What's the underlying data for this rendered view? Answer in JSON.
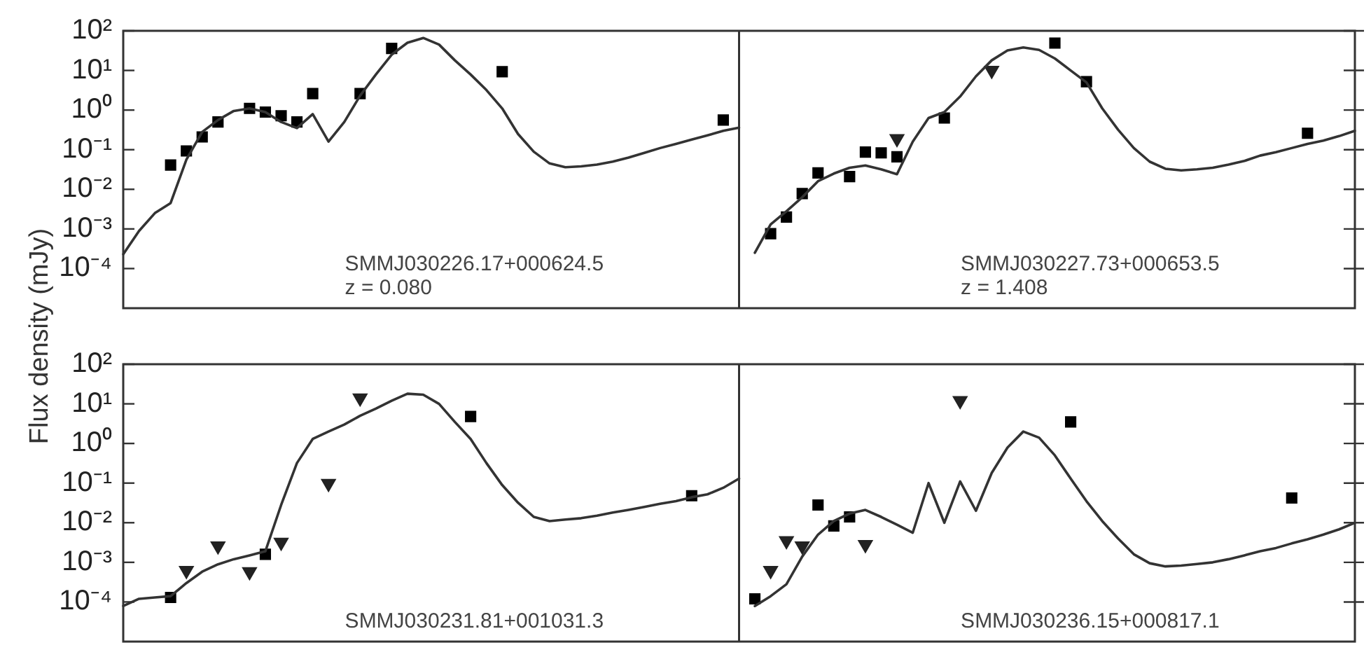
{
  "chart_data": [
    {
      "type": "line",
      "ylabel": "Flux density (mJy)",
      "log": true,
      "legend": false,
      "tick_labels": "y",
      "ylim": [
        1e-05,
        100
      ],
      "yticks": [
        {
          "value": 0.0001,
          "label": "10⁻⁴"
        },
        {
          "value": 0.001,
          "label": "10⁻³"
        },
        {
          "value": 0.01,
          "label": "10⁻²"
        },
        {
          "value": 0.1,
          "label": "10⁻¹"
        },
        {
          "value": 1,
          "label": "10⁰"
        },
        {
          "value": 10,
          "label": "10¹"
        },
        {
          "value": 100,
          "label": "10²"
        }
      ],
      "annotations": [
        "SMMJ030226.17+000624.5",
        "z = 0.080",
        "SMMJ030227.73+000653.5",
        "z = 1.408"
      ],
      "categories": [
        null,
        null,
        null,
        null,
        null,
        null,
        null,
        null,
        null,
        null,
        null,
        null,
        null,
        null,
        null,
        null,
        null,
        null,
        null,
        null,
        null,
        null,
        null,
        null,
        null,
        null,
        null,
        null,
        null,
        null,
        null,
        null,
        null,
        null,
        null,
        null,
        null,
        null,
        null,
        null,
        null,
        null,
        null,
        null,
        null,
        null,
        null,
        null,
        null,
        null,
        null,
        null,
        null,
        null,
        null,
        null,
        null,
        null,
        null,
        null,
        null,
        null,
        null,
        null,
        null,
        null,
        null,
        null,
        null,
        null,
        null,
        null,
        null,
        null,
        null,
        null,
        null,
        null,
        null
      ],
      "series": [
        {
          "type": "line",
          "marker": "none",
          "color": "#333333",
          "values": [
            0.00023,
            0.00089,
            0.0025,
            0.0045,
            0.056,
            0.28,
            0.56,
            0.95,
            1.1,
            0.89,
            0.5,
            0.35,
            0.79,
            0.16,
            0.5,
            2.3,
            7.9,
            25,
            50,
            66,
            45,
            18,
            7.9,
            3.2,
            1.1,
            0.25,
            0.089,
            0.045,
            0.036,
            0.038,
            0.042,
            0.05,
            0.063,
            0.083,
            0.11,
            0.14,
            0.18,
            0.23,
            0.3,
            0.36,
            null,
            null,
            null,
            null,
            null,
            null,
            null,
            null,
            null,
            null,
            null,
            null,
            null,
            null,
            null,
            null,
            null,
            null,
            null,
            null,
            null,
            null,
            null,
            null,
            null,
            null,
            null,
            null,
            null,
            null,
            null,
            null,
            null,
            null,
            null,
            null,
            null,
            null,
            null
          ]
        },
        {
          "type": "scatter",
          "marker": "square",
          "color": "#000000",
          "values": [
            null,
            null,
            null,
            0.041,
            0.093,
            0.21,
            0.5,
            null,
            1.1,
            0.89,
            0.72,
            0.5,
            2.6,
            null,
            null,
            2.6,
            null,
            36,
            null,
            null,
            null,
            null,
            null,
            null,
            9.3,
            null,
            null,
            null,
            null,
            null,
            null,
            null,
            null,
            null,
            null,
            null,
            null,
            null,
            0.56,
            null,
            null,
            null,
            null,
            null,
            null,
            null,
            null,
            null,
            null,
            null,
            null,
            null,
            null,
            null,
            null,
            null,
            null,
            null,
            null,
            null,
            null,
            null,
            null,
            null,
            null,
            null,
            null,
            null,
            null,
            null,
            null,
            null,
            null,
            null,
            null,
            null,
            null,
            null,
            null
          ]
        },
        {
          "type": "line",
          "marker": "none",
          "color": "#333333",
          "values": [
            null,
            null,
            null,
            null,
            null,
            null,
            null,
            null,
            null,
            null,
            null,
            null,
            null,
            null,
            null,
            null,
            null,
            null,
            null,
            null,
            null,
            null,
            null,
            null,
            null,
            null,
            null,
            null,
            null,
            null,
            null,
            null,
            null,
            null,
            null,
            null,
            null,
            null,
            null,
            null,
            0.00025,
            0.0013,
            0.0028,
            0.0063,
            0.016,
            0.025,
            0.035,
            0.04,
            0.032,
            0.024,
            0.16,
            0.63,
            0.89,
            2.2,
            7.1,
            18,
            32,
            38,
            33,
            20,
            10,
            5,
            1.1,
            0.32,
            0.11,
            0.05,
            0.033,
            0.03,
            0.032,
            0.035,
            0.042,
            0.052,
            0.071,
            0.087,
            0.11,
            0.14,
            0.17,
            0.22,
            0.3
          ]
        },
        {
          "type": "scatter",
          "marker": "square",
          "color": "#000000",
          "values": [
            null,
            null,
            null,
            null,
            null,
            null,
            null,
            null,
            null,
            null,
            null,
            null,
            null,
            null,
            null,
            null,
            null,
            null,
            null,
            null,
            null,
            null,
            null,
            null,
            null,
            null,
            null,
            null,
            null,
            null,
            null,
            null,
            null,
            null,
            null,
            null,
            null,
            null,
            null,
            null,
            null,
            0.00076,
            0.002,
            0.0078,
            0.026,
            null,
            0.021,
            0.087,
            0.083,
            0.066,
            null,
            null,
            0.63,
            null,
            null,
            null,
            null,
            null,
            null,
            49,
            null,
            5.2,
            null,
            null,
            null,
            null,
            null,
            null,
            null,
            null,
            null,
            null,
            null,
            null,
            null,
            0.26,
            null,
            null,
            null
          ]
        },
        {
          "type": "scatter",
          "marker": "triangle",
          "color": "#222222",
          "values": [
            null,
            null,
            null,
            null,
            null,
            null,
            null,
            null,
            null,
            null,
            null,
            null,
            null,
            null,
            null,
            null,
            null,
            null,
            null,
            null,
            null,
            null,
            null,
            null,
            null,
            null,
            null,
            null,
            null,
            null,
            null,
            null,
            null,
            null,
            null,
            null,
            null,
            null,
            null,
            null,
            null,
            null,
            null,
            null,
            null,
            null,
            null,
            null,
            null,
            0.19,
            null,
            null,
            null,
            null,
            null,
            10,
            null,
            null,
            null,
            null,
            null,
            null,
            null,
            null,
            null,
            null,
            null,
            null,
            null,
            null,
            null,
            null,
            null,
            null,
            null,
            null,
            null,
            null,
            null
          ]
        }
      ]
    },
    {
      "type": "line",
      "log": true,
      "legend": false,
      "tick_labels": "y",
      "ylim": [
        1e-05,
        100
      ],
      "yticks": [
        {
          "value": 0.0001,
          "label": "10⁻⁴"
        },
        {
          "value": 0.001,
          "label": "10⁻³"
        },
        {
          "value": 0.01,
          "label": "10⁻²"
        },
        {
          "value": 0.1,
          "label": "10⁻¹"
        },
        {
          "value": 1,
          "label": "10⁰"
        },
        {
          "value": 10,
          "label": "10¹"
        },
        {
          "value": 100,
          "label": "10²"
        }
      ],
      "annotations": [
        "SMMJ030231.81+001031.3",
        "SMMJ030236.15+000817.1"
      ],
      "categories": [
        null,
        null,
        null,
        null,
        null,
        null,
        null,
        null,
        null,
        null,
        null,
        null,
        null,
        null,
        null,
        null,
        null,
        null,
        null,
        null,
        null,
        null,
        null,
        null,
        null,
        null,
        null,
        null,
        null,
        null,
        null,
        null,
        null,
        null,
        null,
        null,
        null,
        null,
        null,
        null,
        null,
        null,
        null,
        null,
        null,
        null,
        null,
        null,
        null,
        null,
        null,
        null,
        null,
        null,
        null,
        null,
        null,
        null,
        null,
        null,
        null,
        null,
        null,
        null,
        null,
        null,
        null,
        null,
        null,
        null,
        null,
        null,
        null,
        null,
        null,
        null,
        null,
        null,
        null
      ],
      "series": [
        {
          "type": "line",
          "marker": "none",
          "color": "#333333",
          "values": [
            7.9e-05,
            0.00012,
            0.00013,
            0.00014,
            0.0003,
            0.00058,
            0.00089,
            0.0012,
            0.0015,
            0.0019,
            0.028,
            0.32,
            1.3,
            2,
            3,
            5,
            7.6,
            12,
            18,
            17,
            10,
            3.5,
            1.3,
            0.32,
            0.089,
            0.032,
            0.014,
            0.011,
            0.012,
            0.013,
            0.015,
            0.018,
            0.021,
            0.025,
            0.03,
            0.035,
            0.044,
            0.052,
            0.076,
            0.13,
            null,
            null,
            null,
            null,
            null,
            null,
            null,
            null,
            null,
            null,
            null,
            null,
            null,
            null,
            null,
            null,
            null,
            null,
            null,
            null,
            null,
            null,
            null,
            null,
            null,
            null,
            null,
            null,
            null,
            null,
            null,
            null,
            null,
            null,
            null,
            null,
            null,
            null,
            null
          ]
        },
        {
          "type": "scatter",
          "marker": "square",
          "color": "#000000",
          "values": [
            null,
            null,
            null,
            0.00013,
            null,
            null,
            null,
            null,
            null,
            0.0016,
            null,
            null,
            null,
            null,
            null,
            null,
            null,
            null,
            null,
            null,
            null,
            null,
            4.8,
            null,
            null,
            null,
            null,
            null,
            null,
            null,
            null,
            null,
            null,
            null,
            null,
            null,
            0.048,
            null,
            null,
            null,
            null,
            null,
            null,
            null,
            null,
            null,
            null,
            null,
            null,
            null,
            null,
            null,
            null,
            null,
            null,
            null,
            null,
            null,
            null,
            null,
            null,
            null,
            null,
            null,
            null,
            null,
            null,
            null,
            null,
            null,
            null,
            null,
            null,
            null,
            null,
            null,
            null,
            null,
            null
          ]
        },
        {
          "type": "scatter",
          "marker": "triangle",
          "color": "#222222",
          "values": [
            null,
            null,
            null,
            null,
            0.00062,
            null,
            0.0026,
            null,
            0.00058,
            null,
            0.0032,
            null,
            null,
            0.098,
            null,
            14,
            null,
            null,
            null,
            null,
            null,
            null,
            null,
            null,
            null,
            null,
            null,
            null,
            null,
            null,
            null,
            null,
            null,
            null,
            null,
            null,
            null,
            null,
            null,
            null,
            null,
            null,
            null,
            null,
            null,
            null,
            null,
            null,
            null,
            null,
            null,
            null,
            null,
            null,
            null,
            null,
            null,
            null,
            null,
            null,
            null,
            null,
            null,
            null,
            null,
            null,
            null,
            null,
            null,
            null,
            null,
            null,
            null,
            null,
            null,
            null,
            null,
            null,
            null
          ]
        },
        {
          "type": "line",
          "marker": "none",
          "color": "#333333",
          "values": [
            null,
            null,
            null,
            null,
            null,
            null,
            null,
            null,
            null,
            null,
            null,
            null,
            null,
            null,
            null,
            null,
            null,
            null,
            null,
            null,
            null,
            null,
            null,
            null,
            null,
            null,
            null,
            null,
            null,
            null,
            null,
            null,
            null,
            null,
            null,
            null,
            null,
            null,
            null,
            null,
            7.9e-05,
            0.00014,
            0.00028,
            0.0014,
            0.005,
            0.011,
            0.017,
            0.021,
            0.014,
            0.0089,
            0.0056,
            0.1,
            0.01,
            0.11,
            0.02,
            0.18,
            0.79,
            2,
            1.4,
            0.5,
            0.13,
            0.035,
            0.011,
            0.004,
            0.0016,
            0.00095,
            0.00079,
            0.00083,
            0.00091,
            0.001,
            0.0012,
            0.0015,
            0.0019,
            0.0023,
            0.003,
            0.0038,
            0.005,
            0.0068,
            0.01
          ]
        },
        {
          "type": "scatter",
          "marker": "square",
          "color": "#000000",
          "values": [
            null,
            null,
            null,
            null,
            null,
            null,
            null,
            null,
            null,
            null,
            null,
            null,
            null,
            null,
            null,
            null,
            null,
            null,
            null,
            null,
            null,
            null,
            null,
            null,
            null,
            null,
            null,
            null,
            null,
            null,
            null,
            null,
            null,
            null,
            null,
            null,
            null,
            null,
            null,
            null,
            0.00012,
            null,
            null,
            null,
            0.028,
            0.0083,
            0.014,
            null,
            null,
            null,
            null,
            null,
            null,
            null,
            null,
            null,
            null,
            null,
            null,
            null,
            3.5,
            null,
            null,
            null,
            null,
            null,
            null,
            null,
            null,
            null,
            null,
            null,
            null,
            null,
            0.042,
            null,
            null,
            null,
            null
          ]
        },
        {
          "type": "scatter",
          "marker": "triangle",
          "color": "#222222",
          "values": [
            null,
            null,
            null,
            null,
            null,
            null,
            null,
            null,
            null,
            null,
            null,
            null,
            null,
            null,
            null,
            null,
            null,
            null,
            null,
            null,
            null,
            null,
            null,
            null,
            null,
            null,
            null,
            null,
            null,
            null,
            null,
            null,
            null,
            null,
            null,
            null,
            null,
            null,
            null,
            null,
            null,
            0.00062,
            0.0035,
            0.0026,
            null,
            null,
            null,
            0.0028,
            null,
            null,
            null,
            null,
            null,
            12,
            null,
            null,
            null,
            null,
            null,
            null,
            null,
            null,
            null,
            null,
            null,
            null,
            null,
            null,
            null,
            null,
            null,
            null,
            null,
            null,
            null,
            null,
            null,
            null,
            null
          ]
        }
      ]
    }
  ]
}
